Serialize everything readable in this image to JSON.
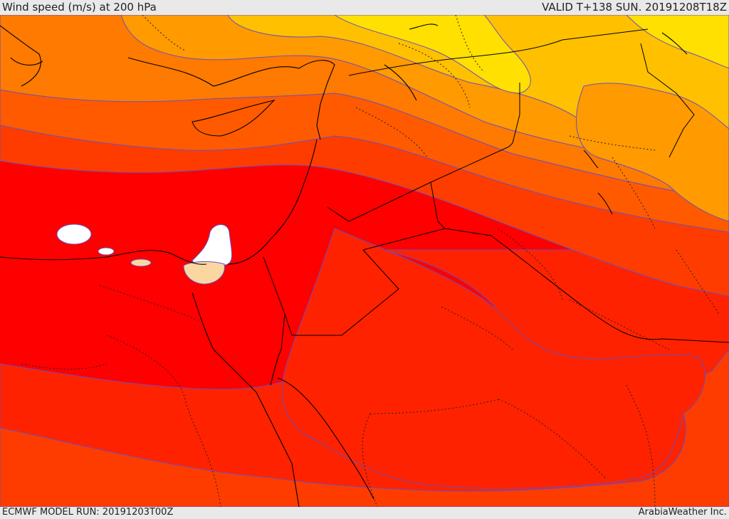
{
  "header": {
    "title": "Wind speed (m/s) at 200 hPa",
    "valid": "VALID T+138 SUN. 20191208T18Z"
  },
  "footer": {
    "model_run": "ECMWF MODEL RUN: 20191203T00Z",
    "credit": "ArabiaWeather Inc."
  },
  "colors": {
    "yellow": "#ffe000",
    "light_orange": "#ffc000",
    "orange": "#ff9a00",
    "dark_orange": "#ff7a00",
    "orange_red": "#ff5a00",
    "red_orange": "#ff3c00",
    "red_light": "#ff2200",
    "red": "#ff0000",
    "white_patch": "#ffffff",
    "cream_patch": "#fad7a0",
    "contour_line": "#6a4fbf",
    "border_line": "#000000"
  }
}
